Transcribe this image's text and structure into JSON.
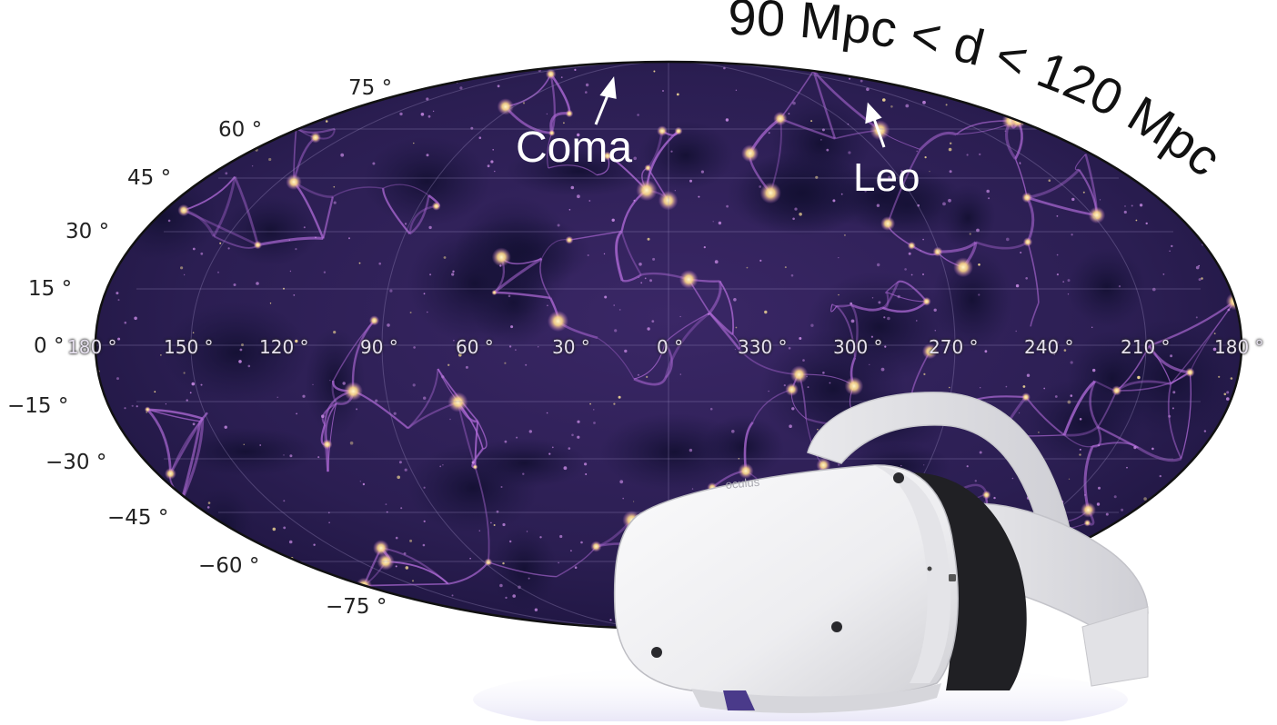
{
  "title": "90 Mpc < d < 120 Mpc",
  "annotations": [
    {
      "id": "coma",
      "text": "Coma"
    },
    {
      "id": "leo",
      "text": "Leo"
    }
  ],
  "latitude_labels": [
    "75 °",
    "60 °",
    "45 °",
    "30 °",
    "15 °",
    "0 °",
    "−15 °",
    "−30 °",
    "−45 °",
    "−60 °",
    "−75 °"
  ],
  "longitude_labels": [
    "180 °",
    "150 °",
    "120 °",
    "90 °",
    "60 °",
    "30 °",
    "0 °",
    "330 °",
    "300 °",
    "270 °",
    "240 °",
    "210 °",
    "180 °"
  ],
  "headset": {
    "brand_text": "oculus"
  },
  "colors": {
    "map_background": "#2a1d4e",
    "filament": "#b06ad8",
    "node": "#ffe59a",
    "headset_shell": "#efeff1",
    "headset_strap": "#dedee2"
  }
}
